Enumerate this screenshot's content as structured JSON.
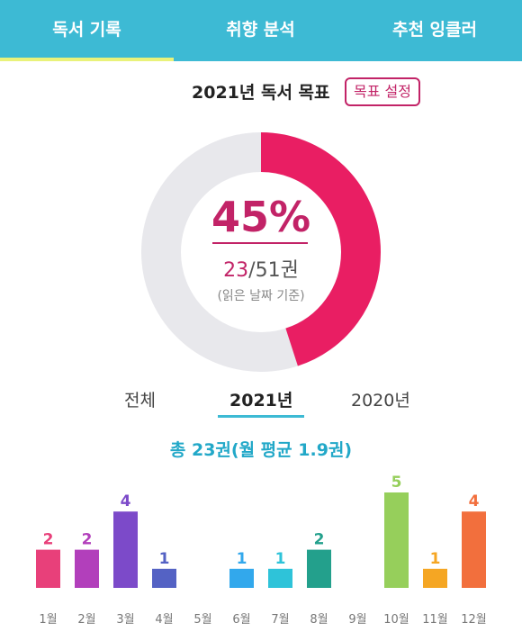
{
  "tabs": [
    {
      "label": "독서 기록"
    },
    {
      "label": "취향 분석"
    },
    {
      "label": "추천 잉클러"
    }
  ],
  "goal": {
    "title": "2021년 독서 목표",
    "button_label": "목표 설정",
    "percent_label": "45%",
    "progress": 0.45,
    "read": "23",
    "total": "/51권",
    "basis": "(읽은 날짜 기준)",
    "colors": {
      "progress": "#e91e63",
      "track": "#e8e8ec",
      "accent": "#c22367"
    }
  },
  "year_tabs": [
    {
      "label": "전체"
    },
    {
      "label": "2021년"
    },
    {
      "label": "2020년"
    }
  ],
  "summary": "총 23권(월 평균 1.9권)",
  "chart_data": {
    "type": "bar",
    "categories": [
      "1월",
      "2월",
      "3월",
      "4월",
      "5월",
      "6월",
      "7월",
      "8월",
      "9월",
      "10월",
      "11월",
      "12월"
    ],
    "values": [
      2,
      2,
      4,
      1,
      0,
      1,
      1,
      2,
      0,
      5,
      1,
      4
    ],
    "colors": [
      "#e8407a",
      "#b23fbb",
      "#7c4ac9",
      "#5462c4",
      "#cccccc",
      "#32a8ec",
      "#2ec3d9",
      "#23a08c",
      "#cccccc",
      "#96cf5b",
      "#f5a623",
      "#f26f3d"
    ],
    "ylim": [
      0,
      5
    ],
    "grid": false
  }
}
